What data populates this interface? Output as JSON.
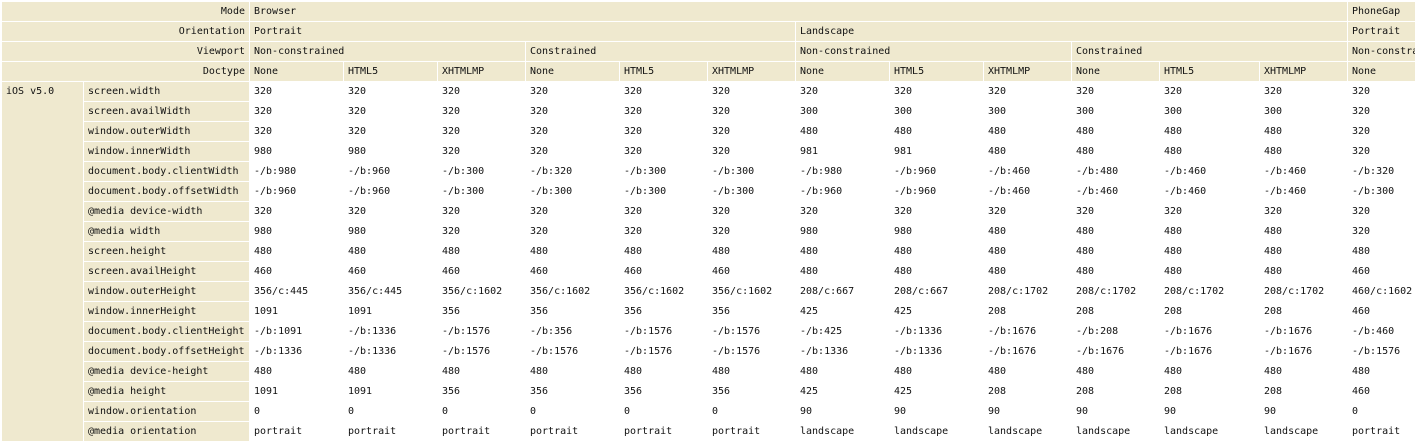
{
  "header_labels": [
    "Mode",
    "Orientation",
    "Viewport",
    "Doctype"
  ],
  "modes": [
    {
      "name": "Browser",
      "orientations": [
        {
          "name": "Portrait",
          "viewports": [
            {
              "name": "Non-constrained",
              "doctypes": [
                "None",
                "HTML5",
                "XHTMLMP"
              ]
            },
            {
              "name": "Constrained",
              "doctypes": [
                "None",
                "HTML5",
                "XHTMLMP"
              ]
            }
          ]
        },
        {
          "name": "Landscape",
          "viewports": [
            {
              "name": "Non-constrained",
              "doctypes": [
                "None",
                "HTML5",
                "XHTMLMP"
              ]
            },
            {
              "name": "Constrained",
              "doctypes": [
                "None",
                "HTML5",
                "XHTMLMP"
              ]
            }
          ]
        }
      ]
    },
    {
      "name": "PhoneGap",
      "orientations": [
        {
          "name": "Portrait",
          "viewports": [
            {
              "name": "Non-constrained",
              "doctypes": [
                "None"
              ]
            }
          ]
        }
      ]
    }
  ],
  "device": "iOS v5.0",
  "rows": [
    {
      "property": "screen.width",
      "values": [
        "320",
        "320",
        "320",
        "320",
        "320",
        "320",
        "320",
        "320",
        "320",
        "320",
        "320",
        "320",
        "320"
      ]
    },
    {
      "property": "screen.availWidth",
      "values": [
        "320",
        "320",
        "320",
        "320",
        "320",
        "320",
        "300",
        "300",
        "300",
        "300",
        "300",
        "300",
        "320"
      ]
    },
    {
      "property": "window.outerWidth",
      "values": [
        "320",
        "320",
        "320",
        "320",
        "320",
        "320",
        "480",
        "480",
        "480",
        "480",
        "480",
        "480",
        "320"
      ]
    },
    {
      "property": "window.innerWidth",
      "values": [
        "980",
        "980",
        "320",
        "320",
        "320",
        "320",
        "981",
        "981",
        "480",
        "480",
        "480",
        "480",
        "320"
      ]
    },
    {
      "property": "document.body.clientWidth",
      "values": [
        "-/b:980",
        "-/b:960",
        "-/b:300",
        "-/b:320",
        "-/b:300",
        "-/b:300",
        "-/b:980",
        "-/b:960",
        "-/b:460",
        "-/b:480",
        "-/b:460",
        "-/b:460",
        "-/b:320"
      ]
    },
    {
      "property": "document.body.offsetWidth",
      "values": [
        "-/b:960",
        "-/b:960",
        "-/b:300",
        "-/b:300",
        "-/b:300",
        "-/b:300",
        "-/b:960",
        "-/b:960",
        "-/b:460",
        "-/b:460",
        "-/b:460",
        "-/b:460",
        "-/b:300"
      ]
    },
    {
      "property": "@media device-width",
      "values": [
        "320",
        "320",
        "320",
        "320",
        "320",
        "320",
        "320",
        "320",
        "320",
        "320",
        "320",
        "320",
        "320"
      ]
    },
    {
      "property": "@media width",
      "values": [
        "980",
        "980",
        "320",
        "320",
        "320",
        "320",
        "980",
        "980",
        "480",
        "480",
        "480",
        "480",
        "320"
      ]
    },
    {
      "property": "screen.height",
      "values": [
        "480",
        "480",
        "480",
        "480",
        "480",
        "480",
        "480",
        "480",
        "480",
        "480",
        "480",
        "480",
        "480"
      ]
    },
    {
      "property": "screen.availHeight",
      "values": [
        "460",
        "460",
        "460",
        "460",
        "460",
        "460",
        "480",
        "480",
        "480",
        "480",
        "480",
        "480",
        "460"
      ]
    },
    {
      "property": "window.outerHeight",
      "values": [
        "356/c:445",
        "356/c:445",
        "356/c:1602",
        "356/c:1602",
        "356/c:1602",
        "356/c:1602",
        "208/c:667",
        "208/c:667",
        "208/c:1702",
        "208/c:1702",
        "208/c:1702",
        "208/c:1702",
        "460/c:1602"
      ]
    },
    {
      "property": "window.innerHeight",
      "values": [
        "1091",
        "1091",
        "356",
        "356",
        "356",
        "356",
        "425",
        "425",
        "208",
        "208",
        "208",
        "208",
        "460"
      ]
    },
    {
      "property": "document.body.clientHeight",
      "values": [
        "-/b:1091",
        "-/b:1336",
        "-/b:1576",
        "-/b:356",
        "-/b:1576",
        "-/b:1576",
        "-/b:425",
        "-/b:1336",
        "-/b:1676",
        "-/b:208",
        "-/b:1676",
        "-/b:1676",
        "-/b:460"
      ]
    },
    {
      "property": "document.body.offsetHeight",
      "values": [
        "-/b:1336",
        "-/b:1336",
        "-/b:1576",
        "-/b:1576",
        "-/b:1576",
        "-/b:1576",
        "-/b:1336",
        "-/b:1336",
        "-/b:1676",
        "-/b:1676",
        "-/b:1676",
        "-/b:1676",
        "-/b:1576"
      ]
    },
    {
      "property": "@media device-height",
      "values": [
        "480",
        "480",
        "480",
        "480",
        "480",
        "480",
        "480",
        "480",
        "480",
        "480",
        "480",
        "480",
        "480"
      ]
    },
    {
      "property": "@media height",
      "values": [
        "1091",
        "1091",
        "356",
        "356",
        "356",
        "356",
        "425",
        "425",
        "208",
        "208",
        "208",
        "208",
        "460"
      ]
    },
    {
      "property": "window.orientation",
      "values": [
        "0",
        "0",
        "0",
        "0",
        "0",
        "0",
        "90",
        "90",
        "90",
        "90",
        "90",
        "90",
        "0"
      ]
    },
    {
      "property": "@media orientation",
      "values": [
        "portrait",
        "portrait",
        "portrait",
        "portrait",
        "portrait",
        "portrait",
        "landscape",
        "landscape",
        "landscape",
        "landscape",
        "landscape",
        "landscape",
        "portrait"
      ]
    }
  ]
}
